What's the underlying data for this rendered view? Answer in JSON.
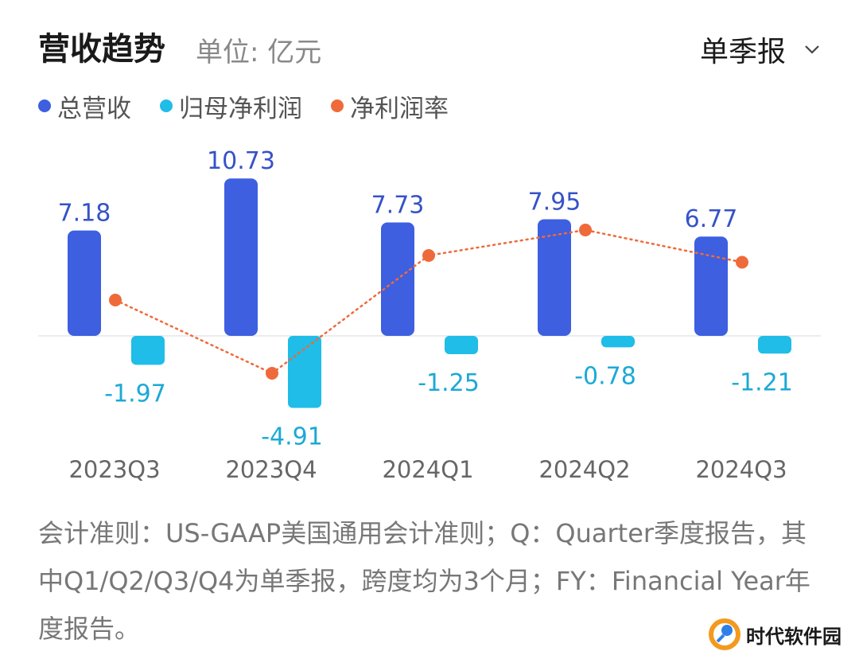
{
  "header": {
    "title": "营收趋势",
    "unit": "单位: 亿元",
    "period_selector": "单季报"
  },
  "legend": [
    {
      "label": "总营收",
      "color": "#3d5fe0"
    },
    {
      "label": "归母净利润",
      "color": "#1fbde8"
    },
    {
      "label": "净利润率",
      "color": "#ef6a3a"
    }
  ],
  "chart_data": {
    "type": "bar",
    "categories": [
      "2023Q3",
      "2023Q4",
      "2024Q1",
      "2024Q2",
      "2024Q3"
    ],
    "series": [
      {
        "name": "总营收",
        "type": "bar",
        "color": "#3d5fe0",
        "values": [
          7.18,
          10.73,
          7.73,
          7.95,
          6.77
        ],
        "labels": [
          "7.18",
          "10.73",
          "7.73",
          "7.95",
          "6.77"
        ]
      },
      {
        "name": "归母净利润",
        "type": "bar",
        "color": "#1fbde8",
        "values": [
          -1.97,
          -4.91,
          -1.25,
          -0.78,
          -1.21
        ],
        "labels": [
          "-1.97",
          "-4.91",
          "-1.25",
          "-0.78",
          "-1.21"
        ]
      },
      {
        "name": "净利润率",
        "type": "line",
        "color": "#ef6a3a",
        "values": [
          -27.4,
          -45.8,
          -16.2,
          -9.8,
          -17.9
        ]
      }
    ],
    "ylim": [
      -5.5,
      11.5
    ],
    "line_ylim": [
      -50,
      0
    ],
    "grid": false
  },
  "footnote": "会计准则：US-GAAP美国通用会计准则；Q：Quarter季度报告，其中Q1/Q2/Q3/Q4为单季报，跨度均为3个月；FY：Financial Year年度报告。",
  "watermark": {
    "text": "时代软件园",
    "icon": "logo-icon"
  }
}
